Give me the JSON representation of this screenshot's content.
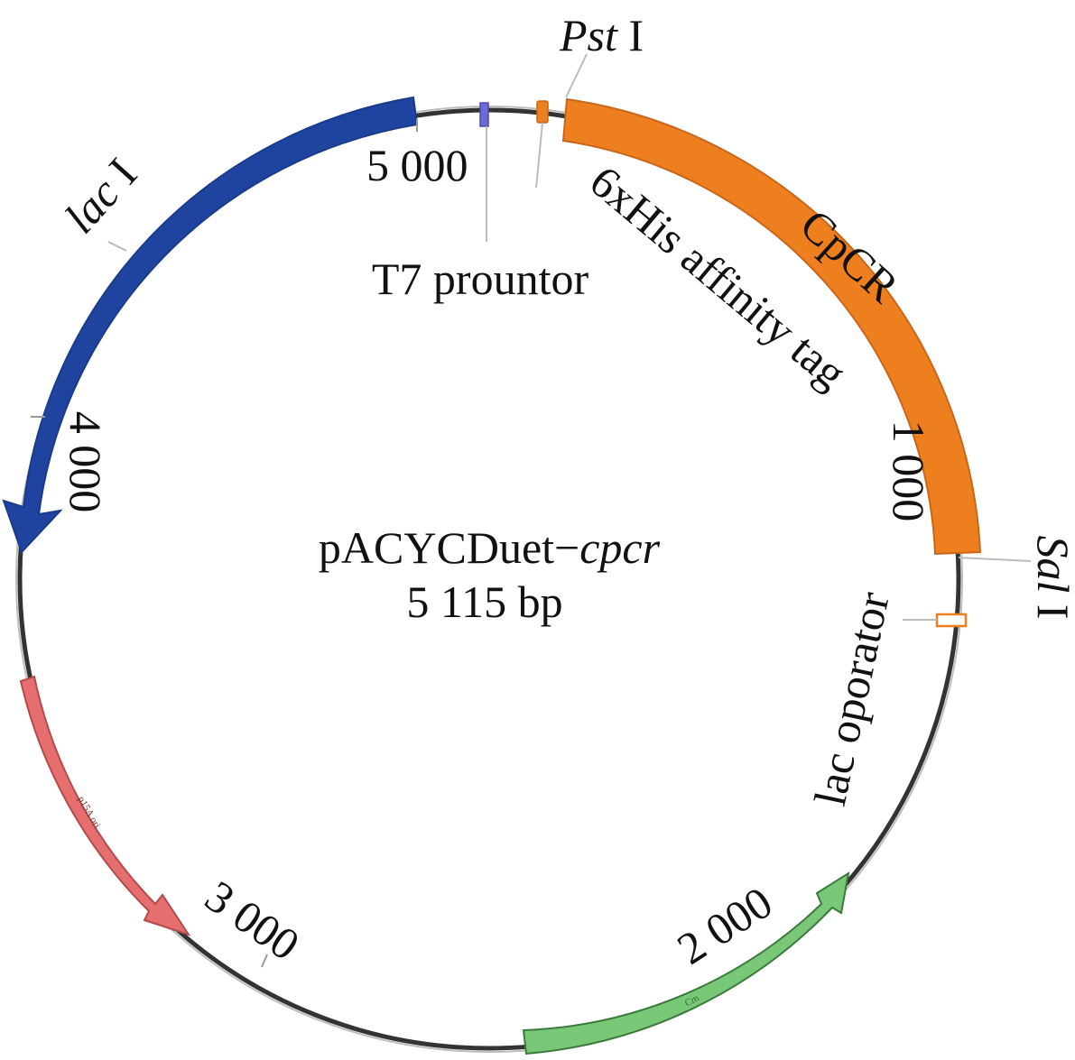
{
  "plasmid": {
    "name_roman": "pACYCDuet−",
    "name_italic": "cpcr",
    "size": "5 115 bp"
  },
  "ticks": {
    "t5000": "5 000",
    "t4000": "4 000",
    "t3000": "3 000",
    "t2000": "2 000",
    "t1000": "1 000"
  },
  "features": {
    "lac_i_italic": "lac",
    "lac_i_suffix": " I",
    "cpcr": "CpCR",
    "his_tag": "6xHis affinity tag",
    "t7": "T7 prountor",
    "lac_operator": "lac oporator",
    "p15a_ori": "p15A ori",
    "cm": "Cm"
  },
  "sites": {
    "pst_italic": "Pst",
    "pst_suffix": " I",
    "sal_italic": "Sal",
    "sal_suffix": " I"
  },
  "colors": {
    "lac_i": "#1e44a0",
    "cpcr": "#ee7f1e",
    "ori": "#e66e6e",
    "cm": "#78c878",
    "t7": "#6a6ad8",
    "backbone": "#333333"
  }
}
